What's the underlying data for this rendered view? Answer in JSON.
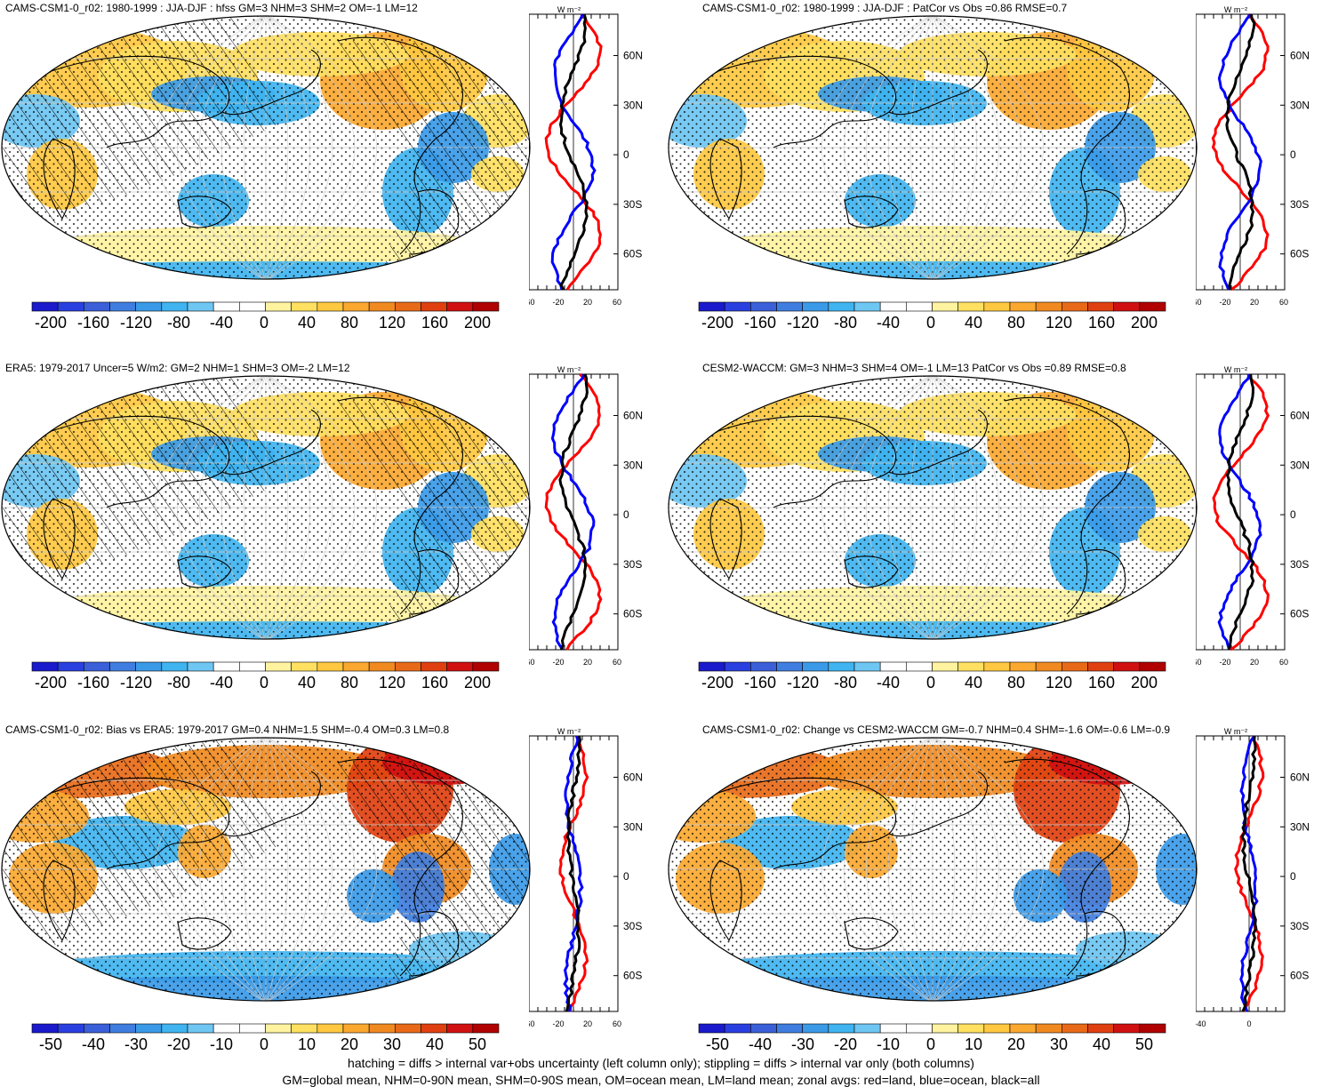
{
  "panels": [
    {
      "id": "p1",
      "title": "CAMS-CSM1-0_r02: 1980-1999 : JJA-DJF : hfss GM=3 NHM=3 SHM=2 OM=-1 LM=12",
      "hatched": true,
      "scale": "big",
      "zonal_xticks": [
        "-60",
        "-20",
        "20",
        "60"
      ],
      "zonal_ylabels": [
        "60N",
        "30N",
        "0",
        "30S",
        "60S"
      ]
    },
    {
      "id": "p2",
      "title": "CAMS-CSM1-0_r02: 1980-1999 : JJA-DJF : PatCor vs Obs =0.86 RMSE=0.7",
      "hatched": false,
      "scale": "big",
      "zonal_xticks": [
        "-60",
        "-20",
        "20",
        "60"
      ],
      "zonal_ylabels": [
        "60N",
        "30N",
        "0",
        "30S",
        "60S"
      ]
    },
    {
      "id": "p3",
      "title": "ERA5: 1979-2017 Uncer=5 W/m2: GM=2 NHM=1 SHM=3 OM=-2 LM=12",
      "hatched": true,
      "scale": "big",
      "zonal_xticks": [
        "-60",
        "-20",
        "20",
        "60"
      ],
      "zonal_ylabels": [
        "60N",
        "30N",
        "0",
        "30S",
        "60S"
      ]
    },
    {
      "id": "p4",
      "title": "CESM2-WACCM: GM=3 NHM=3 SHM=4 OM=-1 LM=13 PatCor vs Obs =0.89 RMSE=0.8",
      "hatched": false,
      "scale": "big",
      "zonal_xticks": [
        "-60",
        "-20",
        "20",
        "60"
      ],
      "zonal_ylabels": [
        "60N",
        "30N",
        "0",
        "30S",
        "60S"
      ]
    },
    {
      "id": "p5",
      "title": "CAMS-CSM1-0_r02: Bias vs ERA5: 1979-2017 GM=0.4 NHM=1.5 SHM=-0.4 OM=0.3 LM=0.8",
      "hatched": true,
      "scale": "small",
      "zonal_xticks": [
        "-60",
        "-20",
        "20",
        "60"
      ],
      "zonal_ylabels": [
        "60N",
        "30N",
        "0",
        "30S",
        "60S"
      ]
    },
    {
      "id": "p6",
      "title": "CAMS-CSM1-0_r02: Change vs CESM2-WACCM GM=-0.7 NHM=0.4 SHM=-1.6 OM=-0.6 LM=-0.9",
      "hatched": false,
      "scale": "small",
      "zonal_xticks": [
        "-40",
        "0"
      ],
      "zonal_ylabels": [
        "60N",
        "30N",
        "0",
        "30S",
        "60S"
      ]
    }
  ],
  "zonal_unit": "W m⁻²",
  "colorbars": {
    "big": {
      "labels": [
        "-200",
        "-160",
        "-120",
        "-80",
        "-40",
        "0",
        "40",
        "80",
        "120",
        "160",
        "200"
      ]
    },
    "small": {
      "labels": [
        "-50",
        "-40",
        "-30",
        "-20",
        "-10",
        "0",
        "10",
        "20",
        "30",
        "40",
        "50"
      ]
    }
  },
  "palette": [
    "#1a1acc",
    "#2a3fe0",
    "#3a5fd8",
    "#3f7ee0",
    "#3a9ae8",
    "#3fb4f0",
    "#6ec6f2",
    "#ffffff",
    "#ffffff",
    "#fff3a0",
    "#ffe060",
    "#ffc840",
    "#fba830",
    "#f08a20",
    "#e86a18",
    "#e04010",
    "#d01010",
    "#b00000"
  ],
  "colors": {
    "land": "#ff0000",
    "ocean": "#0000ff",
    "all": "#000000",
    "grid": "#cccccc"
  },
  "footnote": {
    "line1": "hatching = diffs > internal var+obs uncertainty (left column only); stippling = diffs > internal var only (both columns)",
    "line2": "GM=global mean, NHM=0-90N mean, SHM=0-90S mean, OM=ocean mean, LM=land mean; zonal avgs: red=land, blue=ocean, black=all"
  }
}
